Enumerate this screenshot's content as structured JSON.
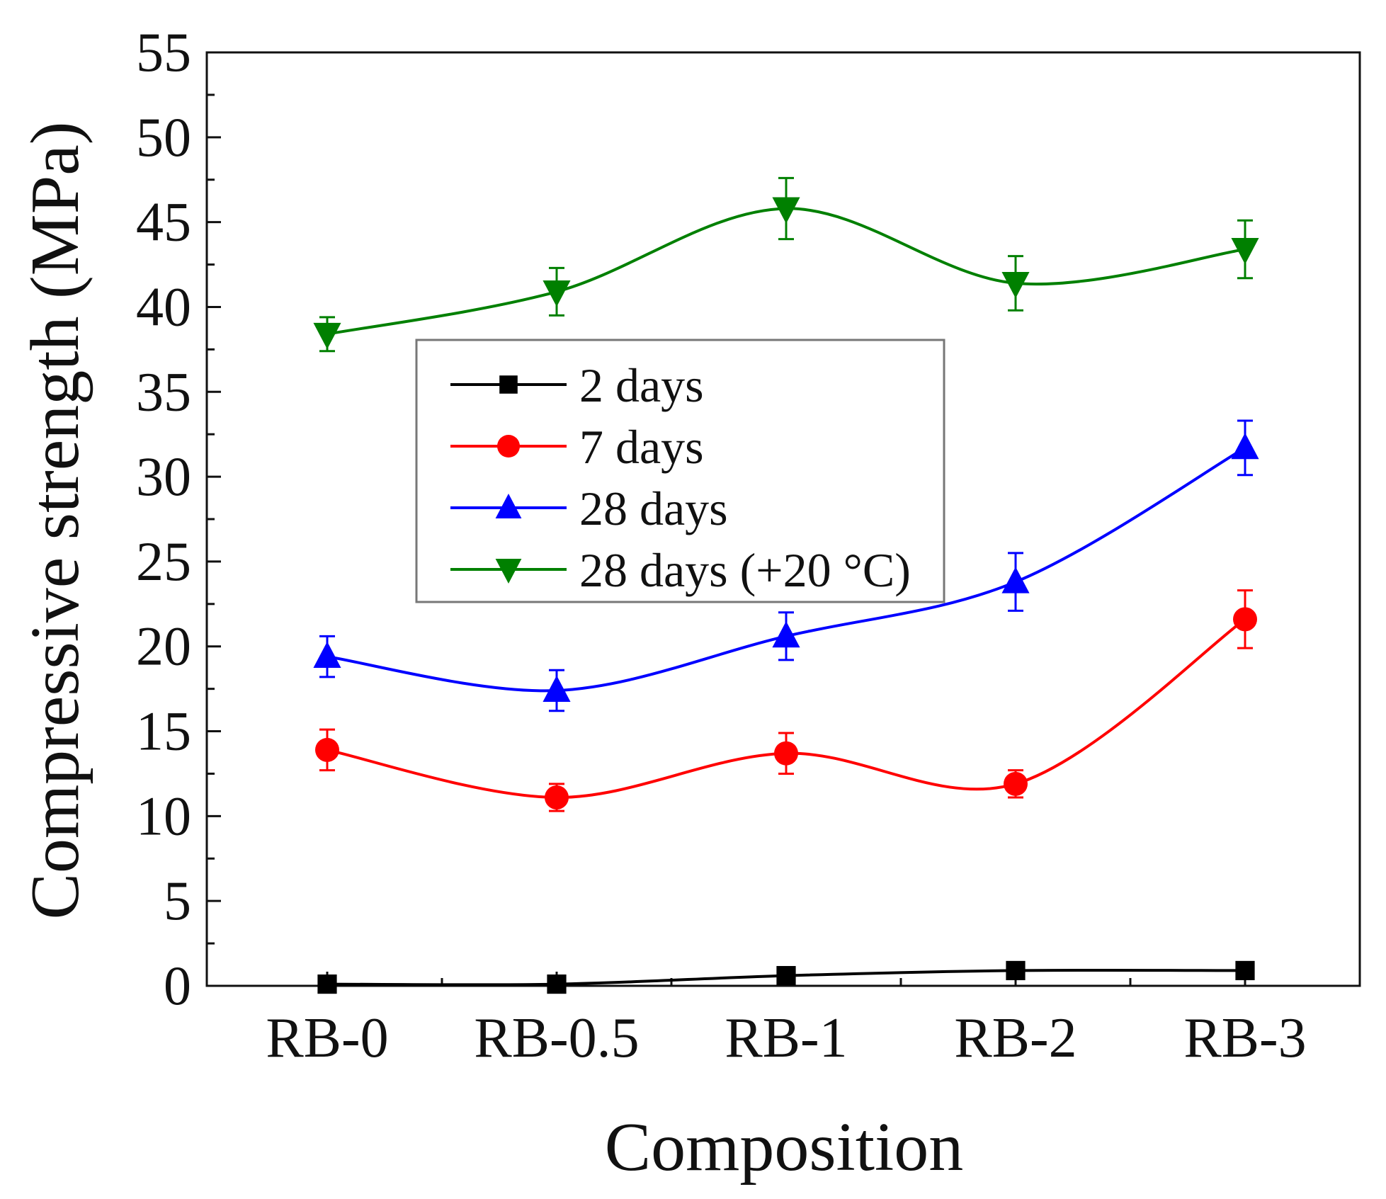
{
  "chart_data": {
    "type": "line",
    "title": "",
    "xlabel": "Composition",
    "ylabel": "Compressive strength (MPa)",
    "categories": [
      "RB-0",
      "RB-0.5",
      "RB-1",
      "RB-2",
      "RB-3"
    ],
    "ylim": [
      0,
      55
    ],
    "yticks": [
      0,
      5,
      10,
      15,
      20,
      25,
      30,
      35,
      40,
      45,
      50,
      55
    ],
    "ytick_labels": [
      "0",
      "5",
      "10",
      "15",
      "20",
      "25",
      "30",
      "35",
      "40",
      "45",
      "50",
      "55"
    ],
    "grid": false,
    "legend_position": "center-left",
    "series": [
      {
        "name": "2 days",
        "color": "#000000",
        "marker": "square",
        "values": [
          0.1,
          0.1,
          0.6,
          0.9,
          0.9
        ],
        "errors": [
          0,
          0,
          0,
          0,
          0
        ]
      },
      {
        "name": "7 days",
        "color": "#ff0000",
        "marker": "circle",
        "values": [
          13.9,
          11.1,
          13.7,
          11.9,
          21.6
        ],
        "errors": [
          1.2,
          0.8,
          1.2,
          0.8,
          1.7
        ]
      },
      {
        "name": "28 days",
        "color": "#0000ff",
        "marker": "triangle-up",
        "values": [
          19.4,
          17.4,
          20.6,
          23.8,
          31.7
        ],
        "errors": [
          1.2,
          1.2,
          1.4,
          1.7,
          1.6
        ]
      },
      {
        "name": "28 days (+20 °C)",
        "color": "#008000",
        "marker": "triangle-down",
        "values": [
          38.4,
          40.9,
          45.8,
          41.4,
          43.4
        ],
        "errors": [
          1.0,
          1.4,
          1.8,
          1.6,
          1.7
        ]
      }
    ]
  }
}
